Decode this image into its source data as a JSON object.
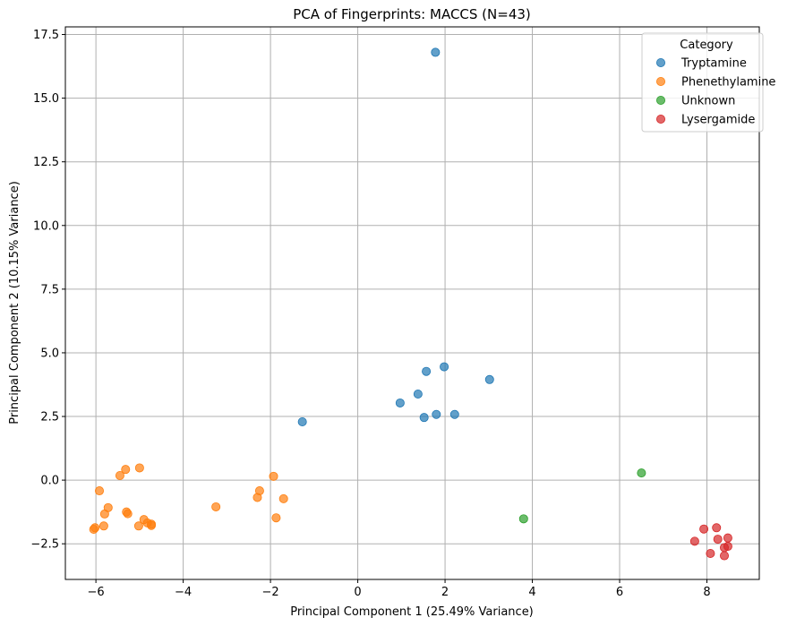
{
  "chart_data": {
    "type": "scatter",
    "title": "PCA of Fingerprints: MACCS (N=43)",
    "xlabel": "Principal Component 1 (25.49% Variance)",
    "ylabel": "Principal Component 2 (10.15% Variance)",
    "xlim": [
      -6.7,
      9.2
    ],
    "ylim": [
      -3.9,
      17.8
    ],
    "xticks": [
      -6,
      -4,
      -2,
      0,
      2,
      4,
      6,
      8
    ],
    "xtick_labels": [
      "−6",
      "−4",
      "−2",
      "0",
      "2",
      "4",
      "6",
      "8"
    ],
    "yticks": [
      -2.5,
      0.0,
      2.5,
      5.0,
      7.5,
      10.0,
      12.5,
      15.0,
      17.5
    ],
    "ytick_labels": [
      "−2.5",
      "0.0",
      "2.5",
      "5.0",
      "7.5",
      "10.0",
      "12.5",
      "15.0",
      "17.5"
    ],
    "grid": true,
    "legend": {
      "title": "Category",
      "placement": "top-right"
    },
    "series": [
      {
        "name": "Tryptamine",
        "color": "#1f77b4",
        "points": [
          [
            1.78,
            16.8
          ],
          [
            1.98,
            4.45
          ],
          [
            1.57,
            4.27
          ],
          [
            3.02,
            3.95
          ],
          [
            1.38,
            3.38
          ],
          [
            0.97,
            3.03
          ],
          [
            -1.27,
            2.29
          ],
          [
            1.52,
            2.46
          ],
          [
            1.8,
            2.58
          ],
          [
            2.22,
            2.58
          ]
        ]
      },
      {
        "name": "Phenethylamine",
        "color": "#ff7f0e",
        "points": [
          [
            -5.0,
            0.48
          ],
          [
            -5.32,
            0.42
          ],
          [
            -5.45,
            0.18
          ],
          [
            -1.93,
            0.15
          ],
          [
            -5.92,
            -0.42
          ],
          [
            -2.25,
            -0.42
          ],
          [
            -2.3,
            -0.68
          ],
          [
            -1.7,
            -0.73
          ],
          [
            -5.72,
            -1.08
          ],
          [
            -3.25,
            -1.05
          ],
          [
            -5.8,
            -1.33
          ],
          [
            -5.3,
            -1.25
          ],
          [
            -5.27,
            -1.32
          ],
          [
            -1.87,
            -1.48
          ],
          [
            -4.9,
            -1.55
          ],
          [
            -4.82,
            -1.68
          ],
          [
            -4.73,
            -1.73
          ],
          [
            -4.73,
            -1.78
          ],
          [
            -5.82,
            -1.8
          ],
          [
            -5.02,
            -1.8
          ],
          [
            -6.02,
            -1.87
          ],
          [
            -6.05,
            -1.93
          ]
        ]
      },
      {
        "name": "Unknown",
        "color": "#2ca02c",
        "points": [
          [
            6.5,
            0.28
          ],
          [
            3.8,
            -1.52
          ]
        ]
      },
      {
        "name": "Lysergamide",
        "color": "#d62728",
        "points": [
          [
            8.22,
            -1.87
          ],
          [
            7.93,
            -1.92
          ],
          [
            8.48,
            -2.27
          ],
          [
            8.25,
            -2.32
          ],
          [
            7.72,
            -2.4
          ],
          [
            8.48,
            -2.6
          ],
          [
            8.4,
            -2.65
          ],
          [
            8.08,
            -2.88
          ],
          [
            8.4,
            -2.97
          ]
        ]
      }
    ]
  }
}
